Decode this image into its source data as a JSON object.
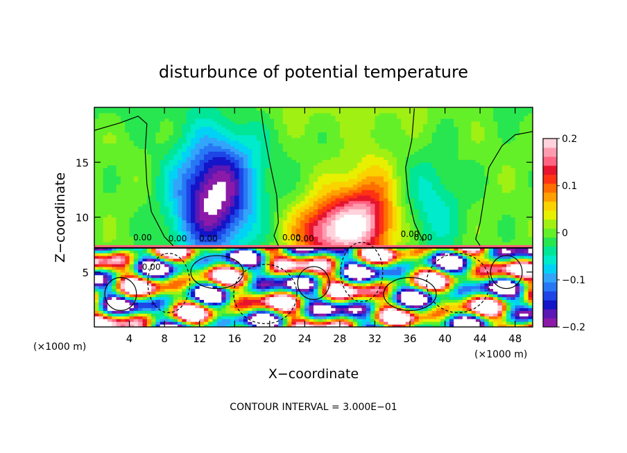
{
  "chart_data": {
    "type": "heatmap",
    "title": "disturbunce of potential temperature",
    "xlabel": "X−coordinate",
    "ylabel": "Z−coordinate",
    "x_unit": "(×1000 m)",
    "y_unit": "(×1000 m)",
    "footer": "CONTOUR INTERVAL = 3.000E−01",
    "xlim": [
      0,
      50
    ],
    "ylim": [
      0,
      20
    ],
    "x_ticks": [
      4,
      8,
      12,
      16,
      20,
      24,
      28,
      32,
      36,
      40,
      44,
      48
    ],
    "y_ticks": [
      5,
      10,
      15
    ],
    "colorbar": {
      "range": [
        -0.2,
        0.2
      ],
      "tick_values": [
        0.2,
        0.1,
        0,
        -0.1,
        -0.2
      ],
      "tick_labels": [
        "0.2",
        "0.1",
        "0",
        "−0.1",
        "−0.2"
      ],
      "colors": [
        "#8c1aa8",
        "#5a18b4",
        "#1414c8",
        "#1e46e6",
        "#2878f5",
        "#32a5fa",
        "#00d2f5",
        "#00eacc",
        "#00e696",
        "#28e650",
        "#64f028",
        "#a0f014",
        "#e6f000",
        "#fad200",
        "#ffa000",
        "#ff6e00",
        "#ff3214",
        "#e6142d",
        "#ff6482",
        "#ff9baf",
        "#ffd2dc"
      ]
    },
    "contour_labels": [
      "0.00",
      "0.00",
      "0.00",
      "0.00",
      "0.00",
      "0.00",
      "0.00",
      "0.00"
    ],
    "warm_anomalies": [
      {
        "x": 29.5,
        "z": 9.2,
        "value": 0.15,
        "sx": 4.5,
        "sz": 3.4
      },
      {
        "x": 26.0,
        "z": 8.6,
        "value": 0.1,
        "sx": 3.5,
        "sz": 2.4
      },
      {
        "x": 31.5,
        "z": 11.5,
        "value": 0.06,
        "sx": 3.0,
        "sz": 4.5
      }
    ],
    "cold_anomalies": [
      {
        "x": 13.5,
        "z": 10.8,
        "value": -0.18,
        "sx": 4.4,
        "sz": 4.6
      },
      {
        "x": 14.5,
        "z": 15.0,
        "value": -0.08,
        "sx": 5.0,
        "sz": 4.0
      },
      {
        "x": 38.5,
        "z": 11.0,
        "value": -0.06,
        "sx": 3.5,
        "sz": 4.5
      }
    ],
    "tropopause_z": 7.2
  }
}
